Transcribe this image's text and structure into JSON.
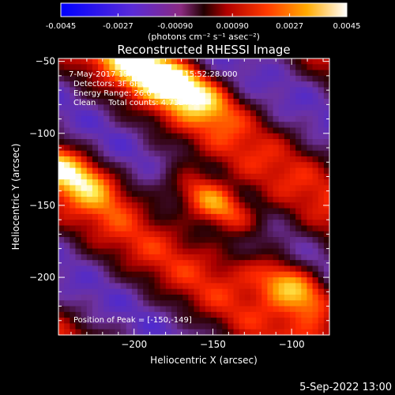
{
  "colorbar": {
    "tick_labels": [
      "-0.0045",
      "-0.0027",
      "-0.00090",
      "0.00090",
      "0.0027",
      "0.0045"
    ],
    "tick_values": [
      -0.0045,
      -0.0027,
      -0.0009,
      0.0009,
      0.0027,
      0.0045
    ],
    "range": [
      -0.0045,
      0.0045
    ],
    "units_label": "(photons cm⁻² s⁻¹ asec⁻²)",
    "colormap": "blue-purple-red-yellow-white"
  },
  "footer": {
    "date": "5-Sep-2022 13:00"
  },
  "chart_data": {
    "type": "heatmap",
    "title": "Reconstructed RHESSI Image",
    "xlabel": "Heliocentric X (arcsec)",
    "ylabel": "Heliocentric Y (arcsec)",
    "xlim": [
      -248,
      -76
    ],
    "ylim": [
      -240,
      -48
    ],
    "x_ticks": [
      -200,
      -150,
      -100
    ],
    "x_tick_labels": [
      "−200",
      "−150",
      "−100"
    ],
    "y_ticks": [
      -50,
      -100,
      -150,
      -200
    ],
    "y_tick_labels": [
      "−50",
      "−100",
      "−150",
      "−200"
    ],
    "annotations": [
      "7-May-2017 15:50:28.000 to 15:52:28.000",
      "Detectors: 3F 6F 8F, Att 0",
      "Energy Range: 26.0 - 50.0 keV",
      "Clean     Total counts: 4.71E+03"
    ],
    "peak_label": "Position of Peak = [-150,-149]",
    "peak_position": [
      -150,
      -149
    ],
    "sources": [
      {
        "x": -150,
        "y": -149,
        "intensity": 1.0
      },
      {
        "x": -97,
        "y": -207,
        "intensity": 0.95
      },
      {
        "x": -193,
        "y": -55,
        "intensity": 0.75
      },
      {
        "x": -163,
        "y": -70,
        "intensity": 0.65
      },
      {
        "x": -237,
        "y": -128,
        "intensity": 0.7
      }
    ],
    "grid": false
  }
}
